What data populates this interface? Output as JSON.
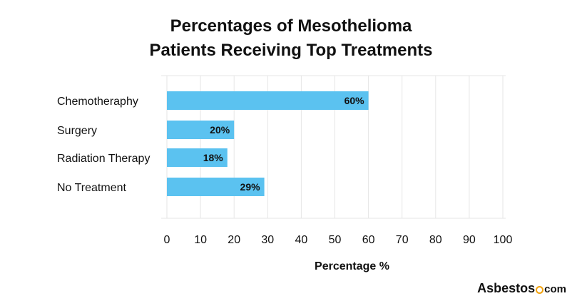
{
  "chart_data": {
    "type": "bar",
    "orientation": "horizontal",
    "title_lines": [
      "Percentages of Mesothelioma",
      "Patients Receiving Top Treatments"
    ],
    "categories": [
      "Chemotheraphy",
      "Surgery",
      "Radiation Therapy",
      "No Treatment"
    ],
    "values": [
      60,
      20,
      18,
      29
    ],
    "value_labels": [
      "60%",
      "20%",
      "18%",
      "29%"
    ],
    "xlabel": "Percentage %",
    "ylabel": "",
    "xlim": [
      0,
      100
    ],
    "xticks": [
      0,
      10,
      20,
      30,
      40,
      50,
      60,
      70,
      80,
      90,
      100
    ],
    "grid": true,
    "bar_color": "#5bc2f0"
  },
  "brand": {
    "name": "Asbestos",
    "suffix": "com",
    "accent_color": "#f2a20c"
  }
}
